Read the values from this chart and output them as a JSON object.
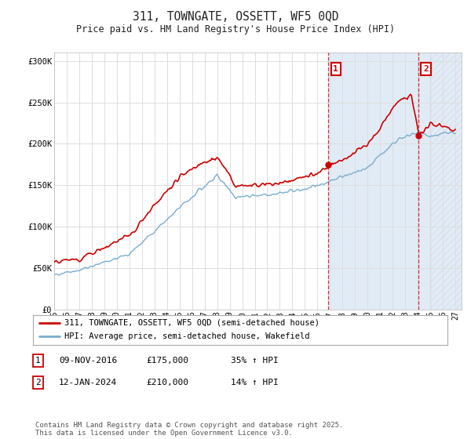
{
  "title": "311, TOWNGATE, OSSETT, WF5 0QD",
  "subtitle": "Price paid vs. HM Land Registry's House Price Index (HPI)",
  "ylim": [
    0,
    310000
  ],
  "yticks": [
    0,
    50000,
    100000,
    150000,
    200000,
    250000,
    300000
  ],
  "ytick_labels": [
    "£0",
    "£50K",
    "£100K",
    "£150K",
    "£200K",
    "£250K",
    "£300K"
  ],
  "bg_color": "#ffffff",
  "plot_bg_color": "#ffffff",
  "grid_color": "#dddddd",
  "shade_color": "#dce8f5",
  "hatch_color": "#c8d8ec",
  "red_line_color": "#cc0000",
  "blue_line_color": "#7aadcf",
  "sale1_year": 2016.86,
  "sale1_price": 175000,
  "sale2_year": 2024.04,
  "sale2_price": 210000,
  "legend_line1": "311, TOWNGATE, OSSETT, WF5 0QD (semi-detached house)",
  "legend_line2": "HPI: Average price, semi-detached house, Wakefield",
  "table_row1": [
    "1",
    "09-NOV-2016",
    "£175,000",
    "35% ↑ HPI"
  ],
  "table_row2": [
    "2",
    "12-JAN-2024",
    "£210,000",
    "14% ↑ HPI"
  ],
  "footer": "Contains HM Land Registry data © Crown copyright and database right 2025.\nThis data is licensed under the Open Government Licence v3.0."
}
